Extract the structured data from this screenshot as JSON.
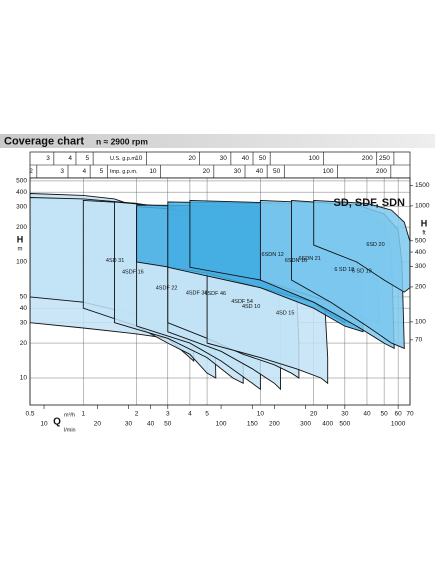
{
  "chart_data": {
    "type": "coverage",
    "title": "Coverage chart",
    "subtitle": "n ≈ 2900 rpm",
    "label": "SD, SDF, SDN",
    "xlabel": "Q",
    "xunit": "m³/h",
    "ylabel": "H",
    "yunit": "m",
    "y2label": "H",
    "y2unit": "ft",
    "log_x": true,
    "log_y": true,
    "grid": true,
    "xlim": [
      0.5,
      70
    ],
    "xticks": [
      0.5,
      1,
      2,
      3,
      4,
      5,
      10,
      20,
      30,
      40,
      50,
      60,
      70
    ],
    "ylim": [
      5.85,
      530
    ],
    "yticks": [
      10,
      20,
      30,
      40,
      50,
      100,
      200,
      300,
      400,
      500
    ],
    "y2lim": [
      19.2,
      1739
    ],
    "y2ticks": [
      70,
      100,
      200,
      300,
      400,
      500,
      1000,
      1500
    ],
    "extra_axes": [
      {
        "label": "U.S. g.p.m.",
        "side": "top",
        "lim": [
          2.2,
          308.2
        ],
        "ticks": [
          3,
          4,
          5,
          10,
          20,
          30,
          40,
          50,
          100,
          200,
          250
        ]
      },
      {
        "label": "Imp. g.p.m.",
        "side": "top",
        "lim": [
          1.83,
          256.6
        ],
        "ticks": [
          2,
          3,
          4,
          5,
          10,
          20,
          30,
          40,
          50,
          100,
          200
        ]
      },
      {
        "label": "l/min",
        "side": "bottom",
        "lim": [
          8.33,
          1166.7
        ],
        "ticks": [
          10,
          20,
          30,
          40,
          50,
          100,
          150,
          200,
          300,
          400,
          500,
          1000
        ]
      }
    ],
    "series": [
      {
        "name": "4SD 31",
        "color": "#c2e2f6",
        "x": [
          0.5,
          1,
          1.5,
          2,
          2.5,
          2.8,
          3,
          3,
          2,
          1,
          0.5
        ],
        "values": [
          390,
          375,
          350,
          300,
          230,
          160,
          60,
          22,
          24,
          27,
          30
        ]
      },
      {
        "name": "4SDF 16",
        "color": "#c2e2f6",
        "x": [
          0.5,
          1,
          2,
          3,
          3.6,
          4,
          4.2,
          4.2,
          3,
          2,
          1,
          0.5
        ],
        "values": [
          360,
          350,
          320,
          260,
          180,
          100,
          20,
          14,
          22,
          35,
          45,
          50
        ]
      },
      {
        "name": "4SDF 22",
        "color": "#c2e2f6",
        "x": [
          1,
          2,
          3,
          4,
          5,
          5.5,
          5.6,
          5,
          4,
          3,
          2,
          1
        ],
        "values": [
          340,
          320,
          290,
          230,
          150,
          50,
          10,
          11,
          16,
          20,
          28,
          40
        ]
      },
      {
        "name": "4SDF 36",
        "color": "#c2e2f6",
        "x": [
          1.5,
          3,
          5,
          6.5,
          7.5,
          8,
          8,
          7,
          5,
          3,
          1.5
        ],
        "values": [
          330,
          300,
          250,
          180,
          100,
          30,
          9,
          10,
          15,
          22,
          30
        ]
      },
      {
        "name": "4SDF 46",
        "color": "#c2e2f6",
        "x": [
          2,
          4,
          6,
          8,
          9.5,
          10,
          10,
          9,
          6,
          4,
          2
        ],
        "values": [
          300,
          280,
          240,
          190,
          120,
          40,
          8,
          9,
          14,
          20,
          28
        ]
      },
      {
        "name": "4SDF 54",
        "color": "#c2e2f6",
        "x": [
          3,
          6,
          9,
          11,
          12.5,
          13,
          13,
          12,
          9,
          6,
          3
        ],
        "values": [
          280,
          250,
          200,
          140,
          80,
          30,
          8,
          9,
          12,
          17,
          25
        ]
      },
      {
        "name": "4SD 10",
        "color": "#c2e2f6",
        "x": [
          3,
          6,
          10,
          14,
          16,
          16.5,
          16.5,
          15,
          12,
          8,
          5,
          3
        ],
        "values": [
          260,
          230,
          180,
          120,
          60,
          20,
          10,
          11,
          13,
          16,
          22,
          30
        ]
      },
      {
        "name": "4SD 15",
        "color": "#c2e2f6",
        "x": [
          5,
          10,
          15,
          20,
          23,
          24,
          24,
          22,
          16,
          10,
          5
        ],
        "values": [
          220,
          190,
          150,
          100,
          50,
          15,
          9,
          10,
          12,
          15,
          20
        ]
      },
      {
        "name": "6SDN 12",
        "color": "#45aee3",
        "x": [
          2,
          5,
          10,
          15,
          20,
          25,
          28,
          30,
          30,
          25,
          20,
          10,
          5,
          2
        ],
        "values": [
          310,
          305,
          300,
          290,
          260,
          200,
          130,
          60,
          30,
          35,
          45,
          60,
          80,
          100
        ]
      },
      {
        "name": "6SDN 16",
        "color": "#45aee3",
        "x": [
          3,
          10,
          20,
          30,
          35,
          38,
          38,
          30,
          20,
          10,
          3
        ],
        "values": [
          330,
          320,
          290,
          230,
          160,
          80,
          25,
          28,
          40,
          60,
          90
        ]
      },
      {
        "name": "6SDN 21",
        "color": "#45aee3",
        "x": [
          4,
          15,
          30,
          40,
          45,
          47,
          40,
          25,
          10,
          4
        ],
        "values": [
          340,
          320,
          270,
          200,
          120,
          30,
          32,
          45,
          70,
          90
        ]
      },
      {
        "name": "6 SD 18",
        "color": "#7cc8ee",
        "x": [
          10,
          25,
          40,
          50,
          55,
          57,
          50,
          35,
          20,
          10
        ],
        "values": [
          340,
          320,
          270,
          200,
          120,
          18,
          20,
          28,
          45,
          70
        ]
      },
      {
        "name": "6 SD 19",
        "color": "#7cc8ee",
        "x": [
          15,
          35,
          50,
          60,
          63,
          65,
          55,
          40,
          25,
          15
        ],
        "values": [
          340,
          310,
          260,
          190,
          100,
          18,
          20,
          28,
          45,
          70
        ]
      },
      {
        "name": "6SD 20",
        "color": "#7cc8ee",
        "x": [
          20,
          40,
          55,
          65,
          70,
          70,
          65,
          50,
          35,
          20
        ],
        "values": [
          340,
          320,
          280,
          220,
          150,
          60,
          55,
          70,
          100,
          140
        ]
      }
    ]
  }
}
